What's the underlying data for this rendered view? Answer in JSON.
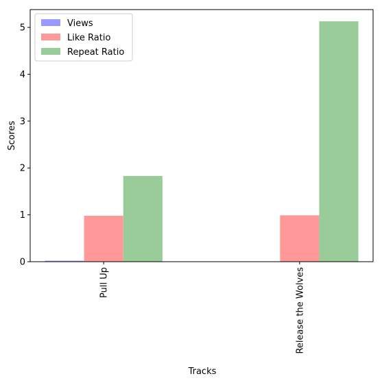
{
  "chart_data": {
    "type": "bar",
    "title": "",
    "xlabel": "Tracks",
    "ylabel": "Scores",
    "categories": [
      "Pull Up",
      "Release the Wolves"
    ],
    "series": [
      {
        "name": "Views",
        "values": [
          0.02,
          0.0
        ],
        "color": "#9999ff"
      },
      {
        "name": "Like Ratio",
        "values": [
          0.98,
          0.99
        ],
        "color": "#ff9999"
      },
      {
        "name": "Repeat Ratio",
        "values": [
          1.83,
          5.13
        ],
        "color": "#99cc99"
      }
    ],
    "ylim": [
      0,
      5.38
    ],
    "yticks": [
      "0",
      "1",
      "2",
      "3",
      "4",
      "5"
    ],
    "ytick_values": [
      0,
      1,
      2,
      3,
      4,
      5
    ],
    "grid": false,
    "legend_position": "upper-left",
    "xtick_rotation": "vertical"
  }
}
